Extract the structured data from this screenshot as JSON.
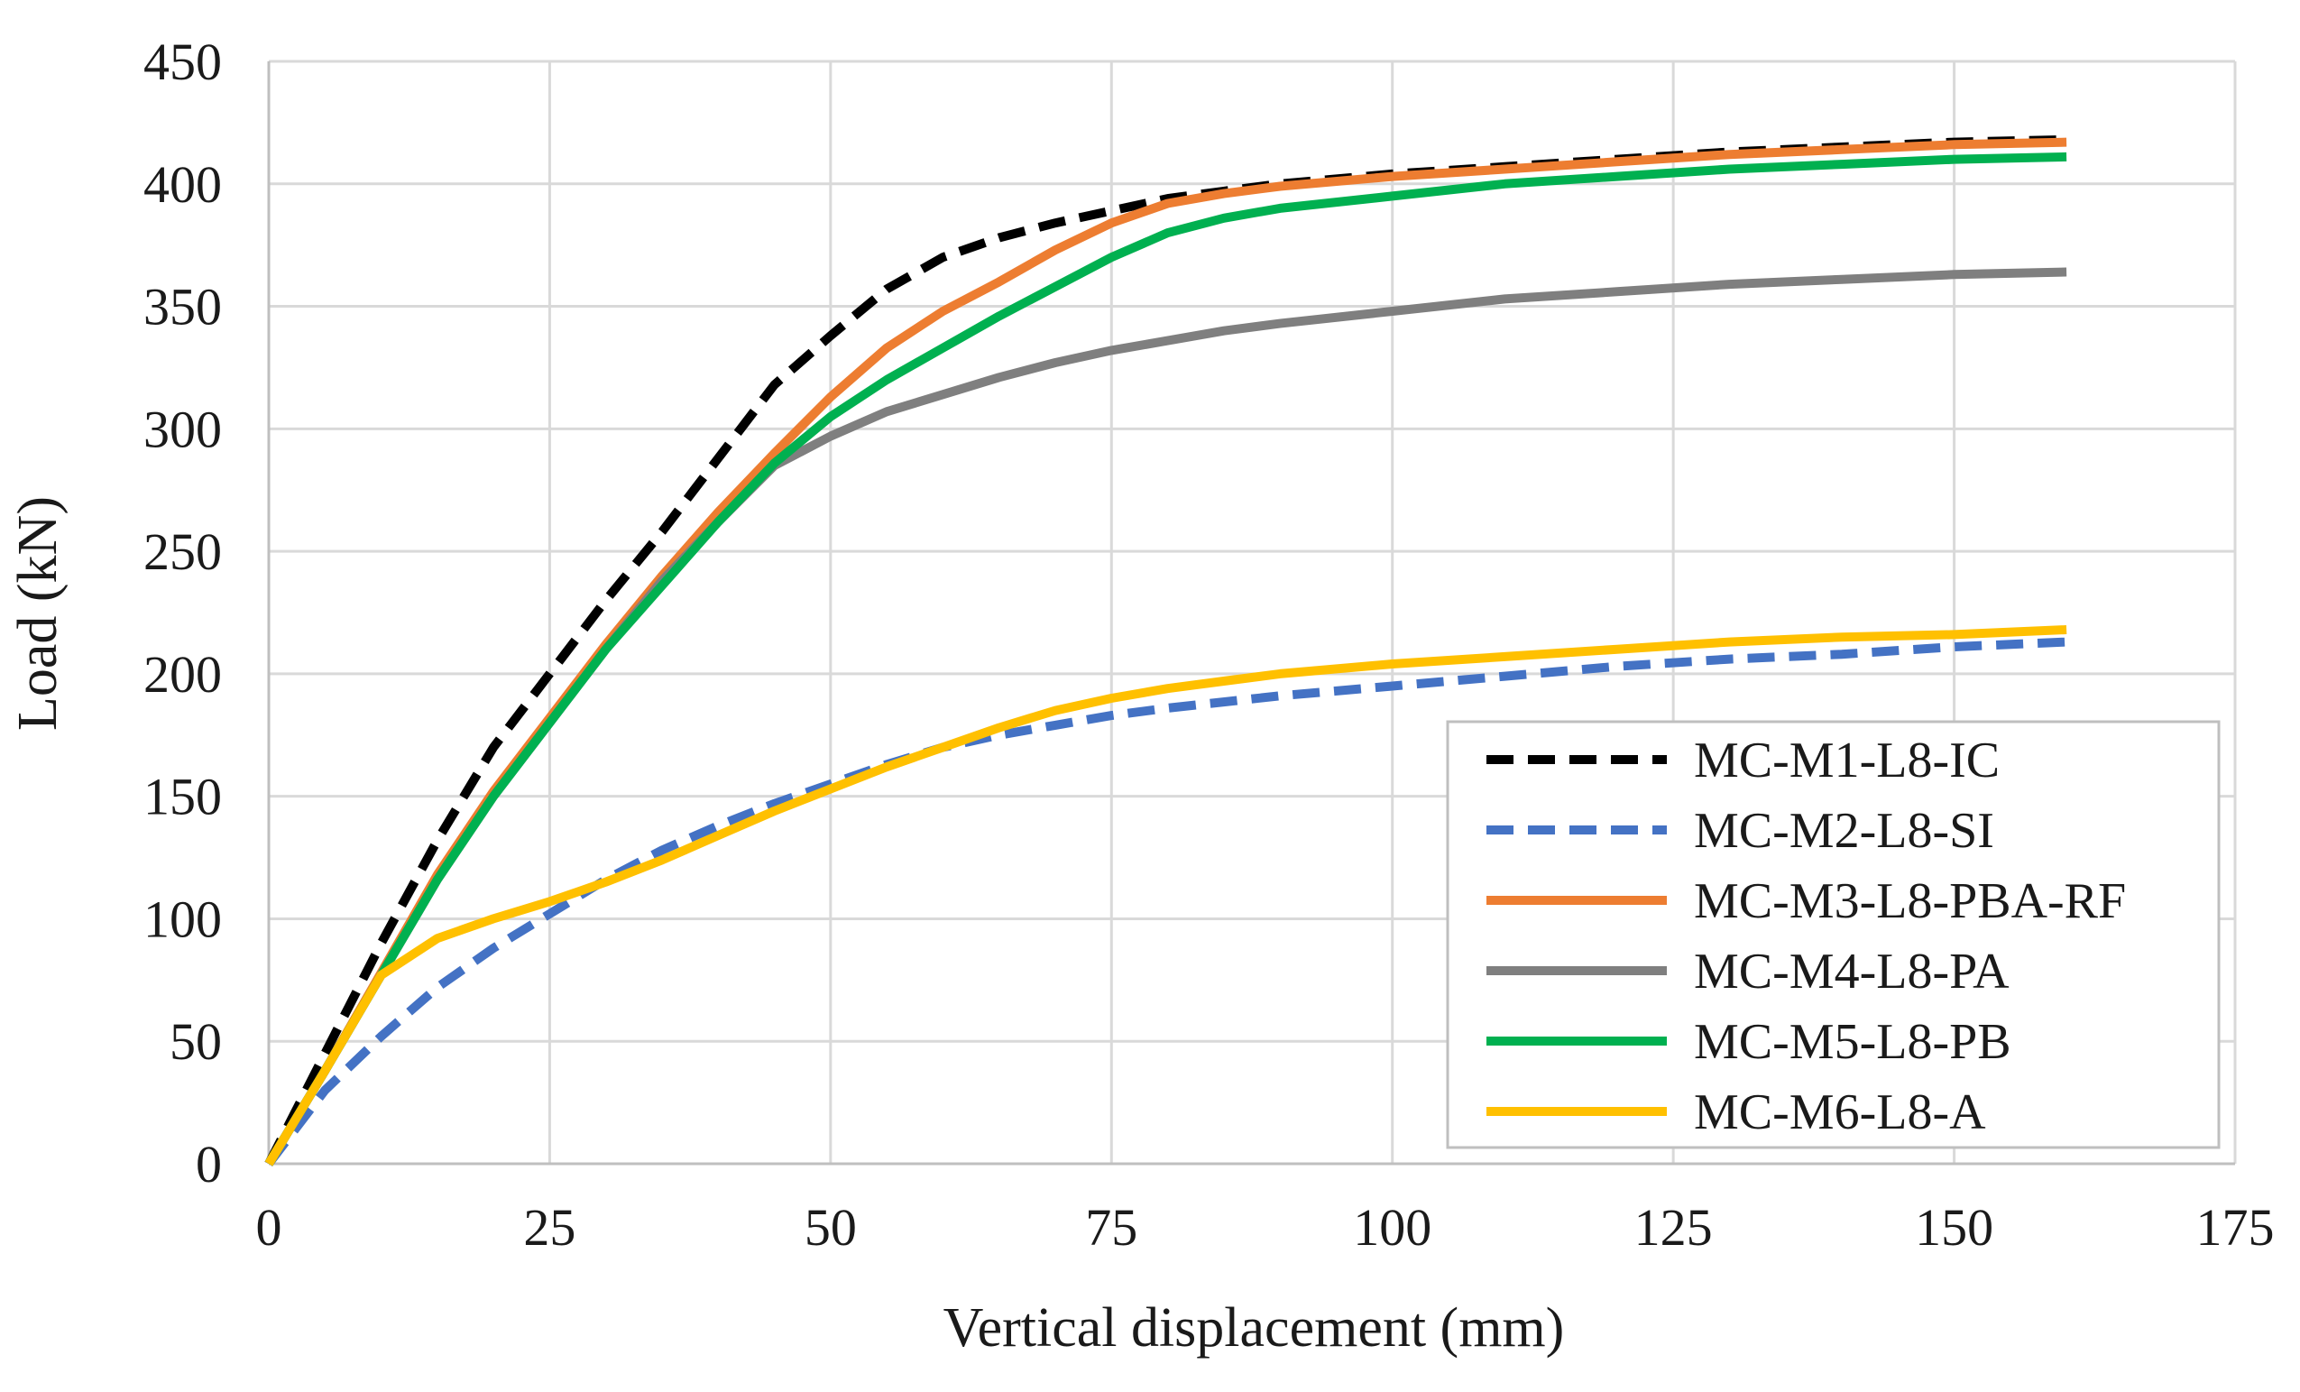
{
  "chart_data": {
    "type": "line",
    "title": "",
    "xlabel": "Vertical displacement (mm)",
    "ylabel": "Load (kN)",
    "xlim": [
      0,
      175
    ],
    "ylim": [
      0,
      450
    ],
    "x_ticks": [
      0,
      25,
      50,
      75,
      100,
      125,
      150,
      175
    ],
    "y_ticks": [
      0,
      50,
      100,
      150,
      200,
      250,
      300,
      350,
      400,
      450
    ],
    "x_tick_labels": [
      "0",
      "25",
      "50",
      "75",
      "100",
      "125",
      "150",
      "175"
    ],
    "y_tick_labels": [
      "0",
      "50",
      "100",
      "150",
      "200",
      "250",
      "300",
      "350",
      "400",
      "450"
    ],
    "grid": true,
    "legend_position": "bottom-right",
    "series": [
      {
        "name": "MC-M1-L8-IC",
        "color": "#000000",
        "dashed": true,
        "points": [
          [
            0,
            0
          ],
          [
            5,
            45
          ],
          [
            10,
            90
          ],
          [
            15,
            132
          ],
          [
            20,
            170
          ],
          [
            25,
            200
          ],
          [
            30,
            230
          ],
          [
            35,
            258
          ],
          [
            40,
            288
          ],
          [
            45,
            318
          ],
          [
            50,
            338
          ],
          [
            55,
            357
          ],
          [
            60,
            370
          ],
          [
            65,
            378
          ],
          [
            70,
            384
          ],
          [
            75,
            389
          ],
          [
            80,
            394
          ],
          [
            85,
            397
          ],
          [
            90,
            400
          ],
          [
            100,
            404
          ],
          [
            110,
            407
          ],
          [
            120,
            410
          ],
          [
            130,
            413
          ],
          [
            140,
            415
          ],
          [
            150,
            417
          ],
          [
            160,
            418
          ]
        ]
      },
      {
        "name": "MC-M2-L8-SI",
        "color": "#4472C4",
        "dashed": true,
        "points": [
          [
            0,
            0
          ],
          [
            5,
            30
          ],
          [
            10,
            52
          ],
          [
            15,
            72
          ],
          [
            20,
            88
          ],
          [
            25,
            102
          ],
          [
            30,
            116
          ],
          [
            35,
            128
          ],
          [
            40,
            138
          ],
          [
            45,
            147
          ],
          [
            50,
            155
          ],
          [
            55,
            163
          ],
          [
            60,
            170
          ],
          [
            65,
            175
          ],
          [
            70,
            179
          ],
          [
            75,
            183
          ],
          [
            80,
            186
          ],
          [
            90,
            191
          ],
          [
            100,
            195
          ],
          [
            110,
            199
          ],
          [
            120,
            203
          ],
          [
            130,
            206
          ],
          [
            140,
            208
          ],
          [
            150,
            211
          ],
          [
            160,
            213
          ]
        ]
      },
      {
        "name": "MC-M3-L8-PBA-RF",
        "color": "#ED7D31",
        "dashed": false,
        "points": [
          [
            0,
            0
          ],
          [
            5,
            38
          ],
          [
            10,
            78
          ],
          [
            15,
            118
          ],
          [
            20,
            152
          ],
          [
            25,
            182
          ],
          [
            30,
            212
          ],
          [
            35,
            240
          ],
          [
            40,
            266
          ],
          [
            45,
            290
          ],
          [
            50,
            313
          ],
          [
            55,
            333
          ],
          [
            60,
            348
          ],
          [
            65,
            360
          ],
          [
            70,
            373
          ],
          [
            75,
            384
          ],
          [
            80,
            392
          ],
          [
            85,
            396
          ],
          [
            90,
            399
          ],
          [
            100,
            403
          ],
          [
            110,
            406
          ],
          [
            120,
            409
          ],
          [
            130,
            412
          ],
          [
            140,
            414
          ],
          [
            150,
            416
          ],
          [
            160,
            417
          ]
        ]
      },
      {
        "name": "MC-M4-L8-PA",
        "color": "#7F7F7F",
        "dashed": false,
        "points": [
          [
            0,
            0
          ],
          [
            5,
            38
          ],
          [
            10,
            77
          ],
          [
            15,
            116
          ],
          [
            20,
            150
          ],
          [
            25,
            180
          ],
          [
            30,
            210
          ],
          [
            35,
            238
          ],
          [
            40,
            262
          ],
          [
            45,
            285
          ],
          [
            50,
            297
          ],
          [
            55,
            307
          ],
          [
            60,
            314
          ],
          [
            65,
            321
          ],
          [
            70,
            327
          ],
          [
            75,
            332
          ],
          [
            80,
            336
          ],
          [
            85,
            340
          ],
          [
            90,
            343
          ],
          [
            100,
            348
          ],
          [
            110,
            353
          ],
          [
            120,
            356
          ],
          [
            130,
            359
          ],
          [
            140,
            361
          ],
          [
            150,
            363
          ],
          [
            160,
            364
          ]
        ]
      },
      {
        "name": "MC-M5-L8-PB",
        "color": "#00B050",
        "dashed": false,
        "points": [
          [
            0,
            0
          ],
          [
            5,
            38
          ],
          [
            10,
            77
          ],
          [
            15,
            116
          ],
          [
            20,
            150
          ],
          [
            25,
            180
          ],
          [
            30,
            210
          ],
          [
            35,
            236
          ],
          [
            40,
            262
          ],
          [
            45,
            286
          ],
          [
            50,
            305
          ],
          [
            55,
            320
          ],
          [
            60,
            333
          ],
          [
            65,
            346
          ],
          [
            70,
            358
          ],
          [
            75,
            370
          ],
          [
            80,
            380
          ],
          [
            85,
            386
          ],
          [
            90,
            390
          ],
          [
            100,
            395
          ],
          [
            110,
            400
          ],
          [
            120,
            403
          ],
          [
            130,
            406
          ],
          [
            140,
            408
          ],
          [
            150,
            410
          ],
          [
            160,
            411
          ]
        ]
      },
      {
        "name": "MC-M6-L8-A",
        "color": "#FFC000",
        "dashed": false,
        "points": [
          [
            0,
            0
          ],
          [
            5,
            38
          ],
          [
            10,
            77
          ],
          [
            15,
            92
          ],
          [
            20,
            100
          ],
          [
            25,
            107
          ],
          [
            30,
            115
          ],
          [
            35,
            124
          ],
          [
            40,
            134
          ],
          [
            45,
            144
          ],
          [
            50,
            153
          ],
          [
            55,
            162
          ],
          [
            60,
            170
          ],
          [
            65,
            178
          ],
          [
            70,
            185
          ],
          [
            75,
            190
          ],
          [
            80,
            194
          ],
          [
            85,
            197
          ],
          [
            90,
            200
          ],
          [
            100,
            204
          ],
          [
            110,
            207
          ],
          [
            120,
            210
          ],
          [
            130,
            213
          ],
          [
            140,
            215
          ],
          [
            150,
            216
          ],
          [
            160,
            218
          ]
        ]
      }
    ]
  }
}
